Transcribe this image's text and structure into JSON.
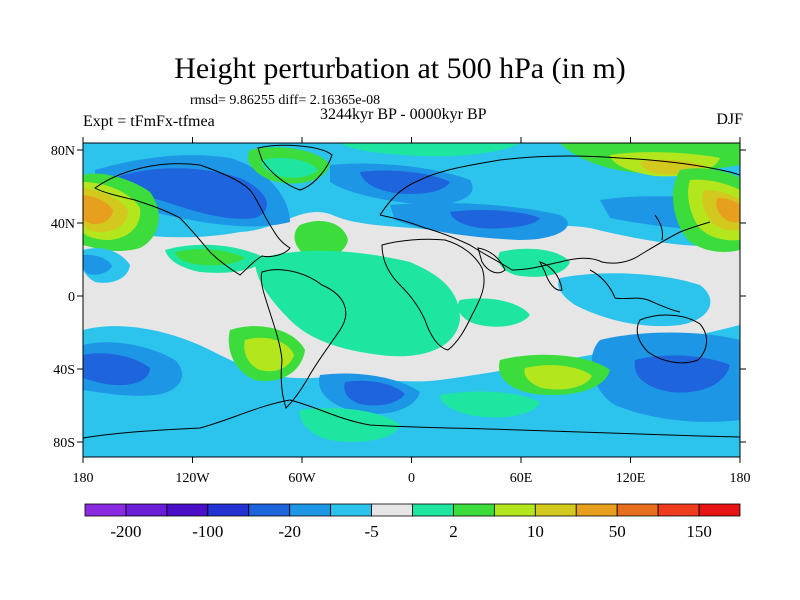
{
  "title": "Height perturbation at 500 hPa (in m)",
  "stats": "rmsd= 9.86255 diff= 2.16365e-08",
  "experiment": "Expt = tFmFx-tfmea",
  "period": "3244kyr BP - 0000kyr BP",
  "season": "DJF",
  "axes": {
    "lon_labels": [
      "180",
      "120W",
      "60W",
      "0",
      "60E",
      "120E",
      "180"
    ],
    "lat_labels": [
      "80N",
      "40N",
      "0",
      "40S",
      "80S"
    ]
  },
  "colorbar": {
    "colors": [
      "#8a2be2",
      "#6a1ed6",
      "#4b0fc8",
      "#2432d2",
      "#1e64dc",
      "#1e96e6",
      "#2cc4ec",
      "#e6e6e6",
      "#1ee6a0",
      "#3cdc3c",
      "#b4e61e",
      "#d2c81e",
      "#e6a01e",
      "#e66e1e",
      "#f03c1e",
      "#e61414"
    ],
    "labels": [
      "-200",
      "-100",
      "-20",
      "-5",
      "2",
      "10",
      "50",
      "150"
    ]
  },
  "colors": {
    "background": "#e6e6e6",
    "coast": "#000000"
  }
}
